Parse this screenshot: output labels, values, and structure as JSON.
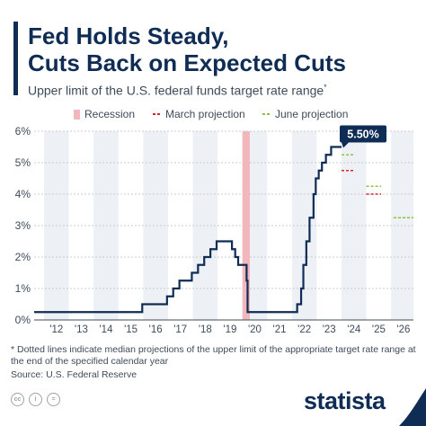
{
  "header": {
    "title_line1": "Fed Holds Steady,",
    "title_line2": "Cuts Back on Expected Cuts",
    "subtitle": "Upper limit of the U.S. federal funds target rate range",
    "subtitle_mark": "*"
  },
  "legend": {
    "recession": "Recession",
    "march": "March projection",
    "june": "June projection"
  },
  "colors": {
    "line": "#0f2c55",
    "recession": "#f0b8bc",
    "march": "#d62728",
    "june": "#8cc63f",
    "band": "#edf0f5",
    "callout": "#0f2c55"
  },
  "chart_data": {
    "type": "line",
    "title": "Fed Holds Steady, Cuts Back on Expected Cuts",
    "subtitle": "Upper limit of the U.S. federal funds target rate range",
    "ylim": [
      0,
      6
    ],
    "xlim": [
      2011.6,
      2026.9
    ],
    "y_ticks": [
      "0%",
      "1%",
      "2%",
      "3%",
      "4%",
      "5%",
      "6%"
    ],
    "x_ticks": [
      "'12",
      "'13",
      "'14",
      "'15",
      "'16",
      "'17",
      "'18",
      "'19",
      "'20",
      "'21",
      "'22",
      "'23",
      "'24",
      "'25",
      "'26"
    ],
    "grid": true,
    "legend_position": "top",
    "callout": "5.50%",
    "recession": [
      2020.0,
      2020.3
    ],
    "series": [
      {
        "name": "Upper limit of the U.S. federal funds target rate range",
        "step": true,
        "points": [
          [
            2011.6,
            0.25
          ],
          [
            2015.96,
            0.5
          ],
          [
            2016.96,
            0.75
          ],
          [
            2017.21,
            1.0
          ],
          [
            2017.46,
            1.25
          ],
          [
            2017.96,
            1.5
          ],
          [
            2018.21,
            1.75
          ],
          [
            2018.46,
            2.0
          ],
          [
            2018.71,
            2.25
          ],
          [
            2018.96,
            2.5
          ],
          [
            2019.58,
            2.25
          ],
          [
            2019.71,
            2.0
          ],
          [
            2019.83,
            1.75
          ],
          [
            2020.17,
            1.25
          ],
          [
            2020.21,
            0.25
          ],
          [
            2022.21,
            0.5
          ],
          [
            2022.37,
            1.0
          ],
          [
            2022.46,
            1.75
          ],
          [
            2022.58,
            2.5
          ],
          [
            2022.71,
            3.25
          ],
          [
            2022.87,
            4.0
          ],
          [
            2022.96,
            4.5
          ],
          [
            2023.08,
            4.75
          ],
          [
            2023.21,
            5.0
          ],
          [
            2023.37,
            5.25
          ],
          [
            2023.58,
            5.5
          ],
          [
            2024.0,
            5.5
          ]
        ]
      },
      {
        "name": "March projection",
        "dashed": true,
        "segments": [
          {
            "x": [
              2024.0,
              2024.5
            ],
            "y": 4.75
          },
          {
            "x": [
              2025.0,
              2025.6
            ],
            "y": 4.0
          },
          {
            "x": [
              2026.1,
              2026.9
            ],
            "y": 3.25
          }
        ]
      },
      {
        "name": "June projection",
        "dashed": true,
        "segments": [
          {
            "x": [
              2024.0,
              2024.5
            ],
            "y": 5.25
          },
          {
            "x": [
              2025.0,
              2025.6
            ],
            "y": 4.25
          },
          {
            "x": [
              2026.1,
              2026.9
            ],
            "y": 3.25
          }
        ]
      }
    ]
  },
  "footnote": {
    "text": "* Dotted lines indicate median projections of the upper limit of the appropriate target rate range at the end of the specified calendar year",
    "source": "Source: U.S. Federal Reserve"
  },
  "footer": {
    "brand": "statista",
    "icons": [
      "cc-icon",
      "info-icon",
      "equals-icon"
    ]
  }
}
